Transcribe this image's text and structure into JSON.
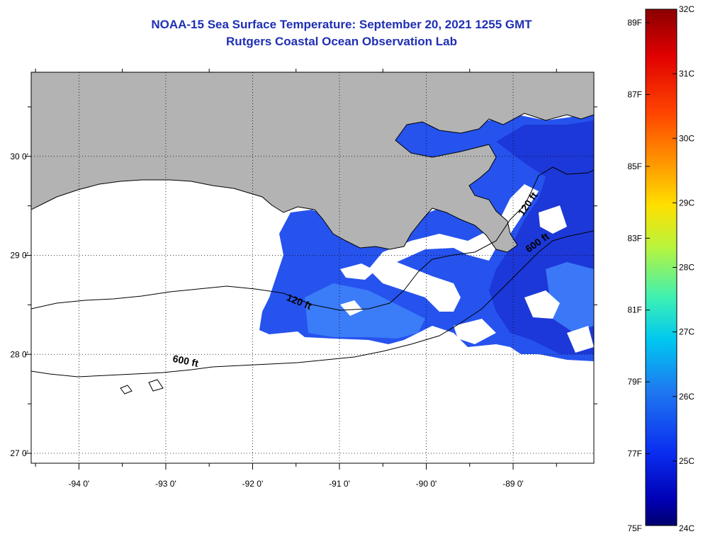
{
  "title": {
    "line1": "NOAA-15 Sea Surface Temperature:  September 20, 2021 1255 GMT",
    "line2": "Rutgers Coastal Ocean Observation Lab"
  },
  "map": {
    "lon_range": [
      -94.55,
      -88.07
    ],
    "lat_range": [
      26.9,
      30.85
    ],
    "lon_ticks": [
      {
        "value": -94,
        "label": "-94 0'"
      },
      {
        "value": -93,
        "label": "-93 0'"
      },
      {
        "value": -92,
        "label": "-92 0'"
      },
      {
        "value": -91,
        "label": "-91 0'"
      },
      {
        "value": -90,
        "label": "-90 0'"
      },
      {
        "value": -89,
        "label": "-89 0'"
      }
    ],
    "lat_ticks": [
      {
        "value": 30,
        "label": "30 0'"
      },
      {
        "value": 29,
        "label": "29 0'"
      },
      {
        "value": 28,
        "label": "28 0'"
      },
      {
        "value": 27,
        "label": "27 0'"
      }
    ],
    "contour_labels": [
      {
        "text": "120 ft",
        "lon": -91.48,
        "lat": 28.5,
        "angle": 22
      },
      {
        "text": "600 ft",
        "lon": -92.78,
        "lat": 27.9,
        "angle": 12
      },
      {
        "text": "600 ft",
        "lon": -88.7,
        "lat": 29.1,
        "angle": -35
      },
      {
        "text": "120 ft",
        "lon": -88.8,
        "lat": 29.5,
        "angle": -55
      }
    ],
    "colors": {
      "land": "#b3b3b3",
      "water_nodata": "#ffffff",
      "sst_dark": "#1d3ad6",
      "sst_mid": "#2b5cf2",
      "sst_light": "#3c7dfa"
    }
  },
  "colorbar": {
    "celsius": [
      "32C",
      "31C",
      "30C",
      "29C",
      "28C",
      "27C",
      "26C",
      "25C",
      "24C"
    ],
    "fahrenheit": [
      "89F",
      "87F",
      "85F",
      "83F",
      "81F",
      "79F",
      "77F",
      "75F"
    ],
    "stops": [
      "#8b0000",
      "#e00000",
      "#ff4400",
      "#ff9900",
      "#ffe000",
      "#b9f43c",
      "#3cf0b4",
      "#00c8f0",
      "#1e78f0",
      "#0a2cf0",
      "#0000b4",
      "#00006e"
    ]
  }
}
